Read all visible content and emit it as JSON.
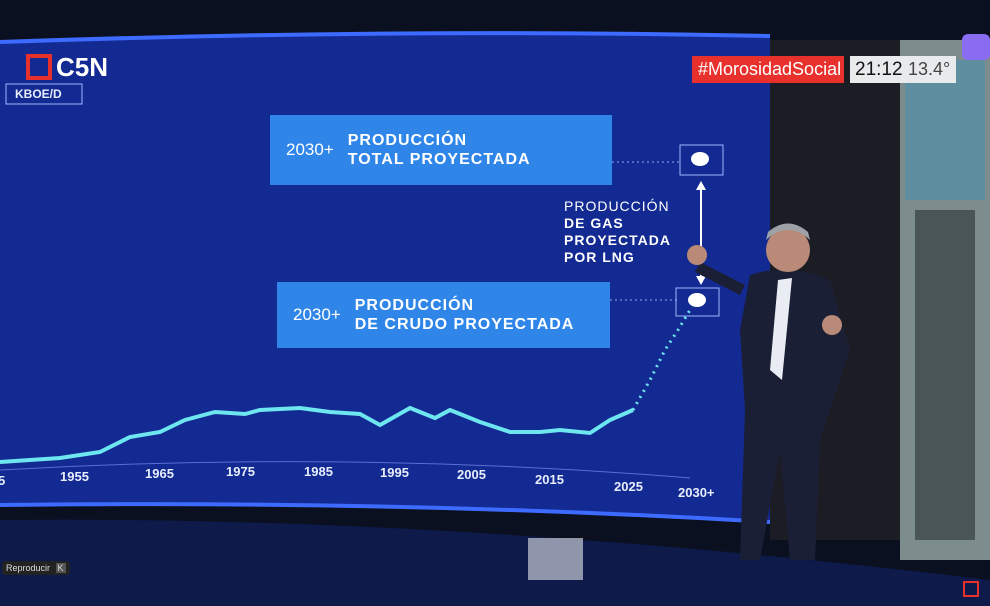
{
  "channel": {
    "logo": "C5N",
    "hashtag": "#MorosidadSocial",
    "time": "21:12",
    "temperature": "13.4°"
  },
  "screen": {
    "unit": "KBOE/D",
    "total_box": {
      "year": "2030+",
      "lines": [
        "PRODUCCIÓN",
        "TOTAL PROYECTADA"
      ]
    },
    "crude_box": {
      "year": "2030+",
      "lines": [
        "PRODUCCIÓN",
        "DE CRUDO PROYECTADA"
      ]
    },
    "gas_note": {
      "lines": [
        "PRODUCCIÓN",
        "DE GAS",
        "PROYECTADA",
        "POR LNG"
      ]
    },
    "x_labels": [
      "5",
      "1955",
      "1965",
      "1975",
      "1985",
      "1995",
      "2005",
      "2015",
      "2025",
      "2030+"
    ]
  },
  "player": {
    "label": "Reproducir",
    "key": "K"
  }
}
